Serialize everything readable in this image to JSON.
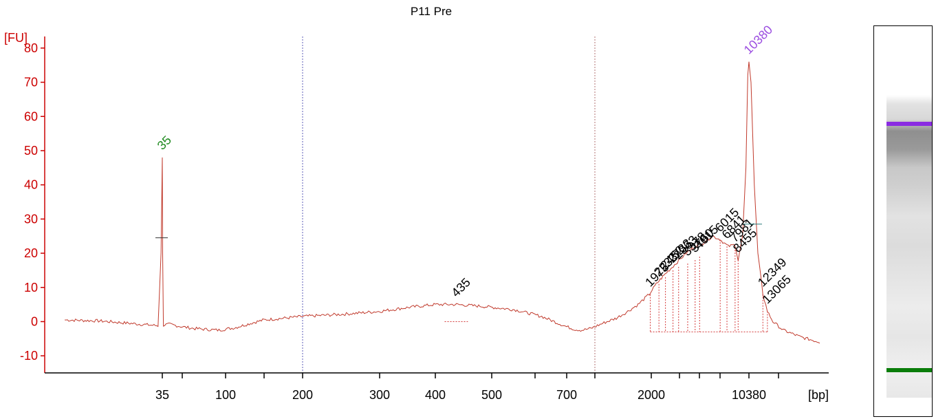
{
  "chart_data": {
    "type": "line",
    "title": "P11 Pre",
    "ylabel": "[FU]",
    "xlabel": "[bp]",
    "ylim": [
      -15,
      85
    ],
    "yticks": [
      -10,
      0,
      10,
      20,
      30,
      40,
      50,
      60,
      70,
      80
    ],
    "x_axis_scale": "log",
    "x_tick_labels": [
      {
        "label": "35",
        "bp": 35
      },
      {
        "label": "",
        "bp": 50
      },
      {
        "label": "100",
        "bp": 100
      },
      {
        "label": "",
        "bp": 150
      },
      {
        "label": "200",
        "bp": 200
      },
      {
        "label": "300",
        "bp": 300
      },
      {
        "label": "400",
        "bp": 400
      },
      {
        "label": "500",
        "bp": 500
      },
      {
        "label": "",
        "bp": 600
      },
      {
        "label": "700",
        "bp": 700
      },
      {
        "label": "",
        "bp": 1000
      },
      {
        "label": "2000",
        "bp": 2000
      },
      {
        "label": "",
        "bp": 3000
      },
      {
        "label": "",
        "bp": 4000
      },
      {
        "label": "",
        "bp": 6000
      },
      {
        "label": "10380",
        "bp": 10380
      },
      {
        "label": "",
        "bp": 15000
      }
    ],
    "vertical_guides": [
      {
        "bp": 200,
        "color": "#5b5bb8"
      },
      {
        "bp": 1000,
        "color": "#b07070"
      }
    ],
    "series": [
      {
        "color": "#c0392b",
        "points": [
          [
            22,
            0.5
          ],
          [
            26,
            0.2
          ],
          [
            30,
            -0.5
          ],
          [
            33,
            -1.0
          ],
          [
            34.3,
            -1.2
          ],
          [
            34.8,
            20
          ],
          [
            35,
            48
          ],
          [
            35.2,
            20
          ],
          [
            35.7,
            -1.0
          ],
          [
            40,
            -0.8
          ],
          [
            50,
            -1.5
          ],
          [
            60,
            -2.0
          ],
          [
            75,
            -2.3
          ],
          [
            90,
            -2.5
          ],
          [
            110,
            -1.8
          ],
          [
            130,
            -0.5
          ],
          [
            150,
            0.5
          ],
          [
            200,
            1.5
          ],
          [
            250,
            2.2
          ],
          [
            300,
            3.0
          ],
          [
            350,
            4.2
          ],
          [
            400,
            5.0
          ],
          [
            435,
            5.0
          ],
          [
            480,
            4.5
          ],
          [
            550,
            3.5
          ],
          [
            620,
            1.5
          ],
          [
            700,
            -1.5
          ],
          [
            780,
            -2.3
          ],
          [
            850,
            -2.5
          ],
          [
            950,
            -2.0
          ],
          [
            1100,
            -0.5
          ],
          [
            1300,
            1.0
          ],
          [
            1500,
            3.0
          ],
          [
            1700,
            5.0
          ],
          [
            1950,
            8.0
          ],
          [
            2150,
            11.0
          ],
          [
            2450,
            14.0
          ],
          [
            2850,
            17.0
          ],
          [
            3300,
            20.0
          ],
          [
            3750,
            22.0
          ],
          [
            4300,
            23.0
          ],
          [
            4700,
            24.0
          ],
          [
            5200,
            25.0
          ],
          [
            6000,
            24.0
          ],
          [
            7000,
            22.0
          ],
          [
            7981,
            22.5
          ],
          [
            8455,
            18.0
          ],
          [
            9200,
            25.0
          ],
          [
            9800,
            45.0
          ],
          [
            10150,
            72.0
          ],
          [
            10380,
            76.0
          ],
          [
            10650,
            70.0
          ],
          [
            11100,
            40.0
          ],
          [
            11600,
            20.0
          ],
          [
            12349,
            8.0
          ],
          [
            13065,
            3.0
          ],
          [
            14000,
            0.0
          ],
          [
            15500,
            -2.5
          ],
          [
            17500,
            -4.5
          ],
          [
            20000,
            -6.0
          ]
        ]
      }
    ],
    "peak_labels": [
      {
        "text": "35",
        "bp": 35,
        "fu": 48,
        "color": "#1f8a1f"
      },
      {
        "text": "435",
        "bp": 435,
        "fu": 5,
        "color": "#000000"
      },
      {
        "text": "1975",
        "bp": 1975,
        "fu": 8,
        "color": "#000000"
      },
      {
        "text": "2233",
        "bp": 2233,
        "fu": 11,
        "color": "#000000"
      },
      {
        "text": "2452",
        "bp": 2452,
        "fu": 13,
        "color": "#000000"
      },
      {
        "text": "2733",
        "bp": 2733,
        "fu": 15,
        "color": "#000000"
      },
      {
        "text": "2963",
        "bp": 2963,
        "fu": 16,
        "color": "#000000"
      },
      {
        "text": "3378",
        "bp": 3378,
        "fu": 17,
        "color": "#000000"
      },
      {
        "text": "3760",
        "bp": 3760,
        "fu": 18,
        "color": "#000000"
      },
      {
        "text": "4015",
        "bp": 4015,
        "fu": 19,
        "color": "#000000"
      },
      {
        "text": "6015",
        "bp": 6015,
        "fu": 24,
        "color": "#000000"
      },
      {
        "text": "6841",
        "bp": 6841,
        "fu": 22,
        "color": "#000000"
      },
      {
        "text": "7981",
        "bp": 7981,
        "fu": 21,
        "color": "#000000"
      },
      {
        "text": "8455",
        "bp": 8455,
        "fu": 18,
        "color": "#000000"
      },
      {
        "text": "10380",
        "bp": 10380,
        "fu": 76,
        "color": "#9b4de0"
      },
      {
        "text": "12349",
        "bp": 12349,
        "fu": 8,
        "color": "#000000"
      },
      {
        "text": "13065",
        "bp": 13065,
        "fu": 3,
        "color": "#000000"
      }
    ],
    "gel": {
      "marker_colors": {
        "upper": "#8a2be2",
        "lower": "#0a7d0a"
      }
    }
  }
}
